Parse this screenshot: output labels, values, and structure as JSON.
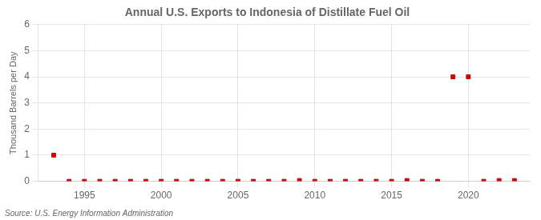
{
  "chart_data": {
    "type": "scatter",
    "title": "Annual U.S. Exports to Indonesia of Distillate Fuel Oil",
    "ylabel": "Thousand Barrels per Day",
    "annotations": [
      "Source: U.S. Energy Information Administration"
    ],
    "x": [
      1993,
      1994,
      1995,
      1996,
      1997,
      1998,
      1999,
      2000,
      2001,
      2002,
      2003,
      2004,
      2005,
      2006,
      2007,
      2008,
      2009,
      2010,
      2011,
      2012,
      2013,
      2014,
      2015,
      2016,
      2017,
      2018,
      2019,
      2020,
      2021,
      2022,
      2023
    ],
    "values": [
      1,
      0,
      0,
      0,
      0,
      0,
      0,
      0,
      0,
      0,
      0,
      0,
      0,
      0,
      0,
      0,
      0.03,
      0,
      0,
      0,
      0,
      0,
      0,
      0.03,
      0,
      0,
      4,
      4,
      0,
      0.03,
      0.03
    ],
    "color": "#cc0000",
    "marker": "square",
    "xlim": [
      1992,
      2024
    ],
    "xticks": [
      1995,
      2000,
      2005,
      2010,
      2015,
      2020
    ],
    "ylim": [
      0,
      6
    ],
    "yticks": [
      0,
      1,
      2,
      3,
      4,
      5,
      6
    ],
    "grid": true
  }
}
